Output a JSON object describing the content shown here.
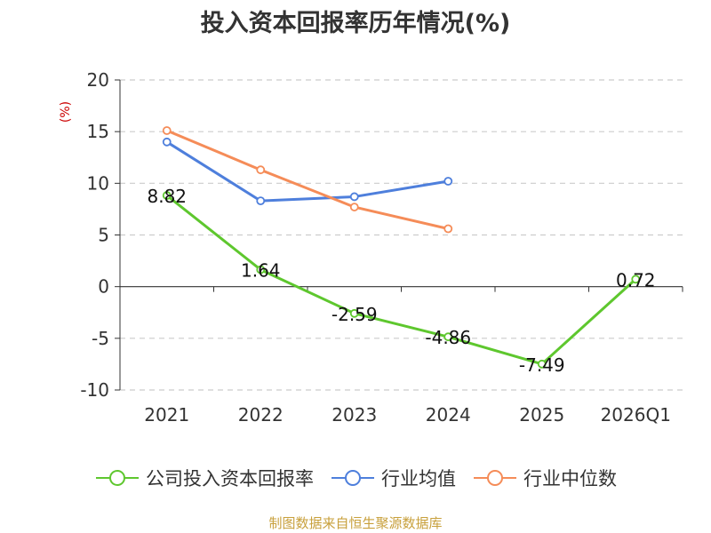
{
  "chart_data": {
    "type": "line",
    "title": "投入资本回报率历年情况(%)",
    "ylabel": "(%)",
    "xlabel": "",
    "categories": [
      "2021",
      "2022",
      "2023",
      "2024",
      "2025",
      "2026Q1"
    ],
    "ylim": [
      -10,
      20
    ],
    "yticks": [
      20,
      15,
      10,
      5,
      0,
      -5,
      -10
    ],
    "grid": true,
    "legend_position": "bottom",
    "series": [
      {
        "name": "公司投入资本回报率",
        "color": "#5ec72e",
        "values": [
          8.82,
          1.64,
          -2.59,
          -4.86,
          -7.49,
          0.72
        ],
        "labels": [
          "8.82",
          "1.64",
          "-2.59",
          "-4.86",
          "-7.49",
          "0.72"
        ]
      },
      {
        "name": "行业均值",
        "color": "#4e7fdc",
        "values": [
          14.0,
          8.3,
          8.7,
          10.2,
          null,
          null
        ]
      },
      {
        "name": "行业中位数",
        "color": "#f58c58",
        "values": [
          15.1,
          11.3,
          7.7,
          5.6,
          null,
          null
        ]
      }
    ]
  },
  "source": "制图数据来自恒生聚源数据库"
}
